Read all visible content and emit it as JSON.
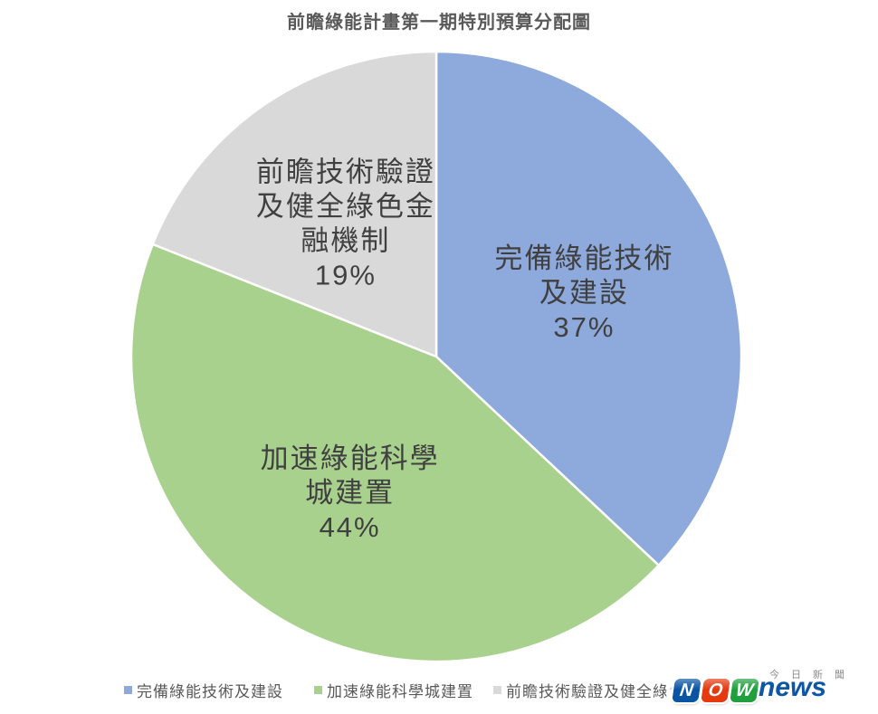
{
  "title": "前瞻綠能計畫第一期特別預算分配圖",
  "chart_data": {
    "type": "pie",
    "title": "前瞻綠能計畫第一期特別預算分配圖",
    "start_angle_deg": 0,
    "direction": "clockwise",
    "unit": "percent",
    "legend_position": "bottom",
    "slices": [
      {
        "name": "完備綠能技術及建設",
        "value": 37,
        "color": "#8EA9DB",
        "label_lines": [
          "完備綠能技術",
          "及建設",
          "37%"
        ]
      },
      {
        "name": "加速綠能科學城建置",
        "value": 44,
        "color": "#A9D18E",
        "label_lines": [
          "加速綠能科學",
          "城建置",
          "44%"
        ]
      },
      {
        "name": "前瞻技術驗證及健全綠色金融機制",
        "value": 19,
        "color": "#D9D9D9",
        "label_lines": [
          "前瞻技術驗證",
          "及健全綠色金",
          "融機制",
          "19%"
        ]
      }
    ]
  },
  "legend": {
    "items": [
      {
        "label": "完備綠能技術及建設",
        "color": "#8EA9DB"
      },
      {
        "label": "加速綠能科學城建置",
        "color": "#A9D18E"
      },
      {
        "label": "前瞻技術驗證及健全綠色金融機制",
        "color": "#D9D9D9"
      }
    ]
  },
  "watermark": {
    "blocks": [
      {
        "letter": "N",
        "color": "#0A55A3"
      },
      {
        "letter": "O",
        "color": "#E53A10"
      },
      {
        "letter": "W",
        "color": "#1FA03D"
      }
    ],
    "wordmark": "news",
    "wordmark_color": "#0B56A5",
    "tagline": "今日新聞"
  },
  "colors": {
    "background": "#FFFFFF",
    "slice_border": "#FFFFFF",
    "label_text": "#404040",
    "title_text": "#595959",
    "legend_text": "#595959"
  }
}
